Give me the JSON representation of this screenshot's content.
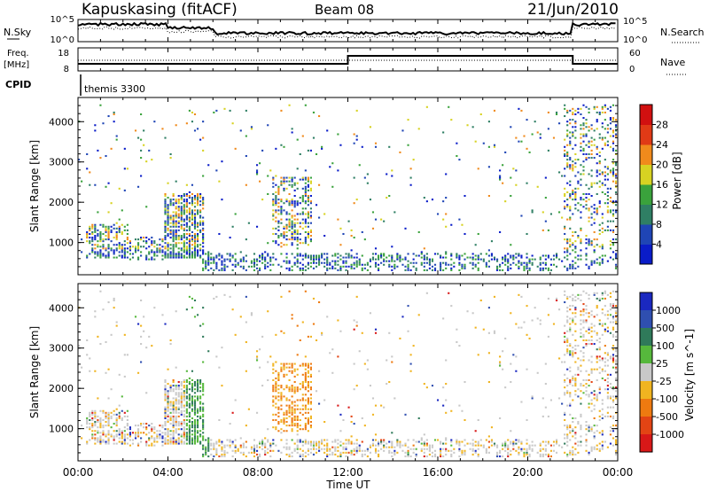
{
  "header": {
    "site": "Kapuskasing (fitACF)",
    "beam": "Beam 08",
    "date": "21/Jun/2010"
  },
  "sky_panel": {
    "left_label": "N.Sky",
    "left_ticks": [
      "10^5",
      "10^0"
    ],
    "right_label": "N.Search",
    "right_ticks": [
      "10^5",
      "10^0"
    ]
  },
  "freq_panel": {
    "left_label_line1": "Freq.",
    "left_label_line2": "[MHz]",
    "left_ticks": [
      "18",
      "8"
    ],
    "right_label": "Nave",
    "right_ticks": [
      "60",
      "0"
    ]
  },
  "cpid": {
    "label": "CPID",
    "mode": "themis 3300"
  },
  "chart_data": [
    {
      "type": "heatmap",
      "name": "power",
      "ylabel": "Slant Range [km]",
      "yticks": [
        "1000",
        "2000",
        "3000",
        "4000"
      ],
      "ylim": [
        200,
        4600
      ],
      "xlim_hours": [
        0,
        24
      ],
      "colorbar": {
        "label": "Power [dB]",
        "ticks": [
          "4",
          "8",
          "12",
          "16",
          "20",
          "24",
          "28"
        ],
        "colors": [
          "#0a1cc8",
          "#1f45b5",
          "#2f7f64",
          "#3aa23c",
          "#d7d222",
          "#f08a1c",
          "#e03a16",
          "#d11010"
        ]
      }
    },
    {
      "type": "heatmap",
      "name": "velocity",
      "ylabel": "Slant Range [km]",
      "yticks": [
        "1000",
        "2000",
        "3000",
        "4000"
      ],
      "ylim": [
        200,
        4600
      ],
      "xlim_hours": [
        0,
        24
      ],
      "colorbar": {
        "label": "Velocity [m s^-1]",
        "ticks": [
          "1000",
          "500",
          "100",
          "25",
          "-25",
          "-100",
          "-500",
          "-1000"
        ],
        "colors": [
          "#1a28c0",
          "#2f4fb0",
          "#2f7a5a",
          "#56b83c",
          "#c8c8c8",
          "#f0b420",
          "#ee7a10",
          "#e34414",
          "#d81818"
        ]
      }
    }
  ],
  "x_axis": {
    "ticks": [
      "00:00",
      "04:00",
      "08:00",
      "12:00",
      "16:00",
      "20:00",
      "00:00"
    ],
    "label": "Time UT"
  }
}
